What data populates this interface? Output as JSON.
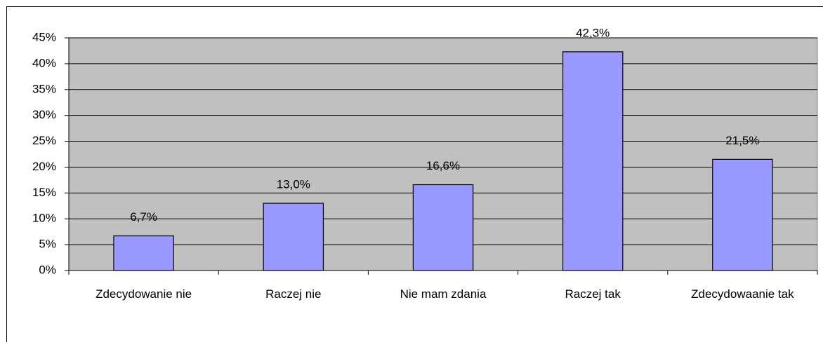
{
  "chart_data": {
    "type": "bar",
    "categories": [
      "Zdecydowanie nie",
      "Raczej nie",
      "Nie mam zdania",
      "Raczej tak",
      "Zdecydowaanie tak"
    ],
    "values": [
      6.7,
      13.0,
      16.6,
      42.3,
      21.5
    ],
    "value_labels": [
      "6,7%",
      "13,0%",
      "16,6%",
      "42,3%",
      "21,5%"
    ],
    "color": "#9999ff",
    "ylim": [
      0,
      45
    ],
    "yticks": [
      {
        "value": 0,
        "label": "0%"
      },
      {
        "value": 5,
        "label": "5%"
      },
      {
        "value": 10,
        "label": "10%"
      },
      {
        "value": 15,
        "label": "15%"
      },
      {
        "value": 20,
        "label": "20%"
      },
      {
        "value": 25,
        "label": "25%"
      },
      {
        "value": 30,
        "label": "30%"
      },
      {
        "value": 35,
        "label": "35%"
      },
      {
        "value": 40,
        "label": "40%"
      },
      {
        "value": 45,
        "label": "45%"
      }
    ],
    "grid": true
  }
}
